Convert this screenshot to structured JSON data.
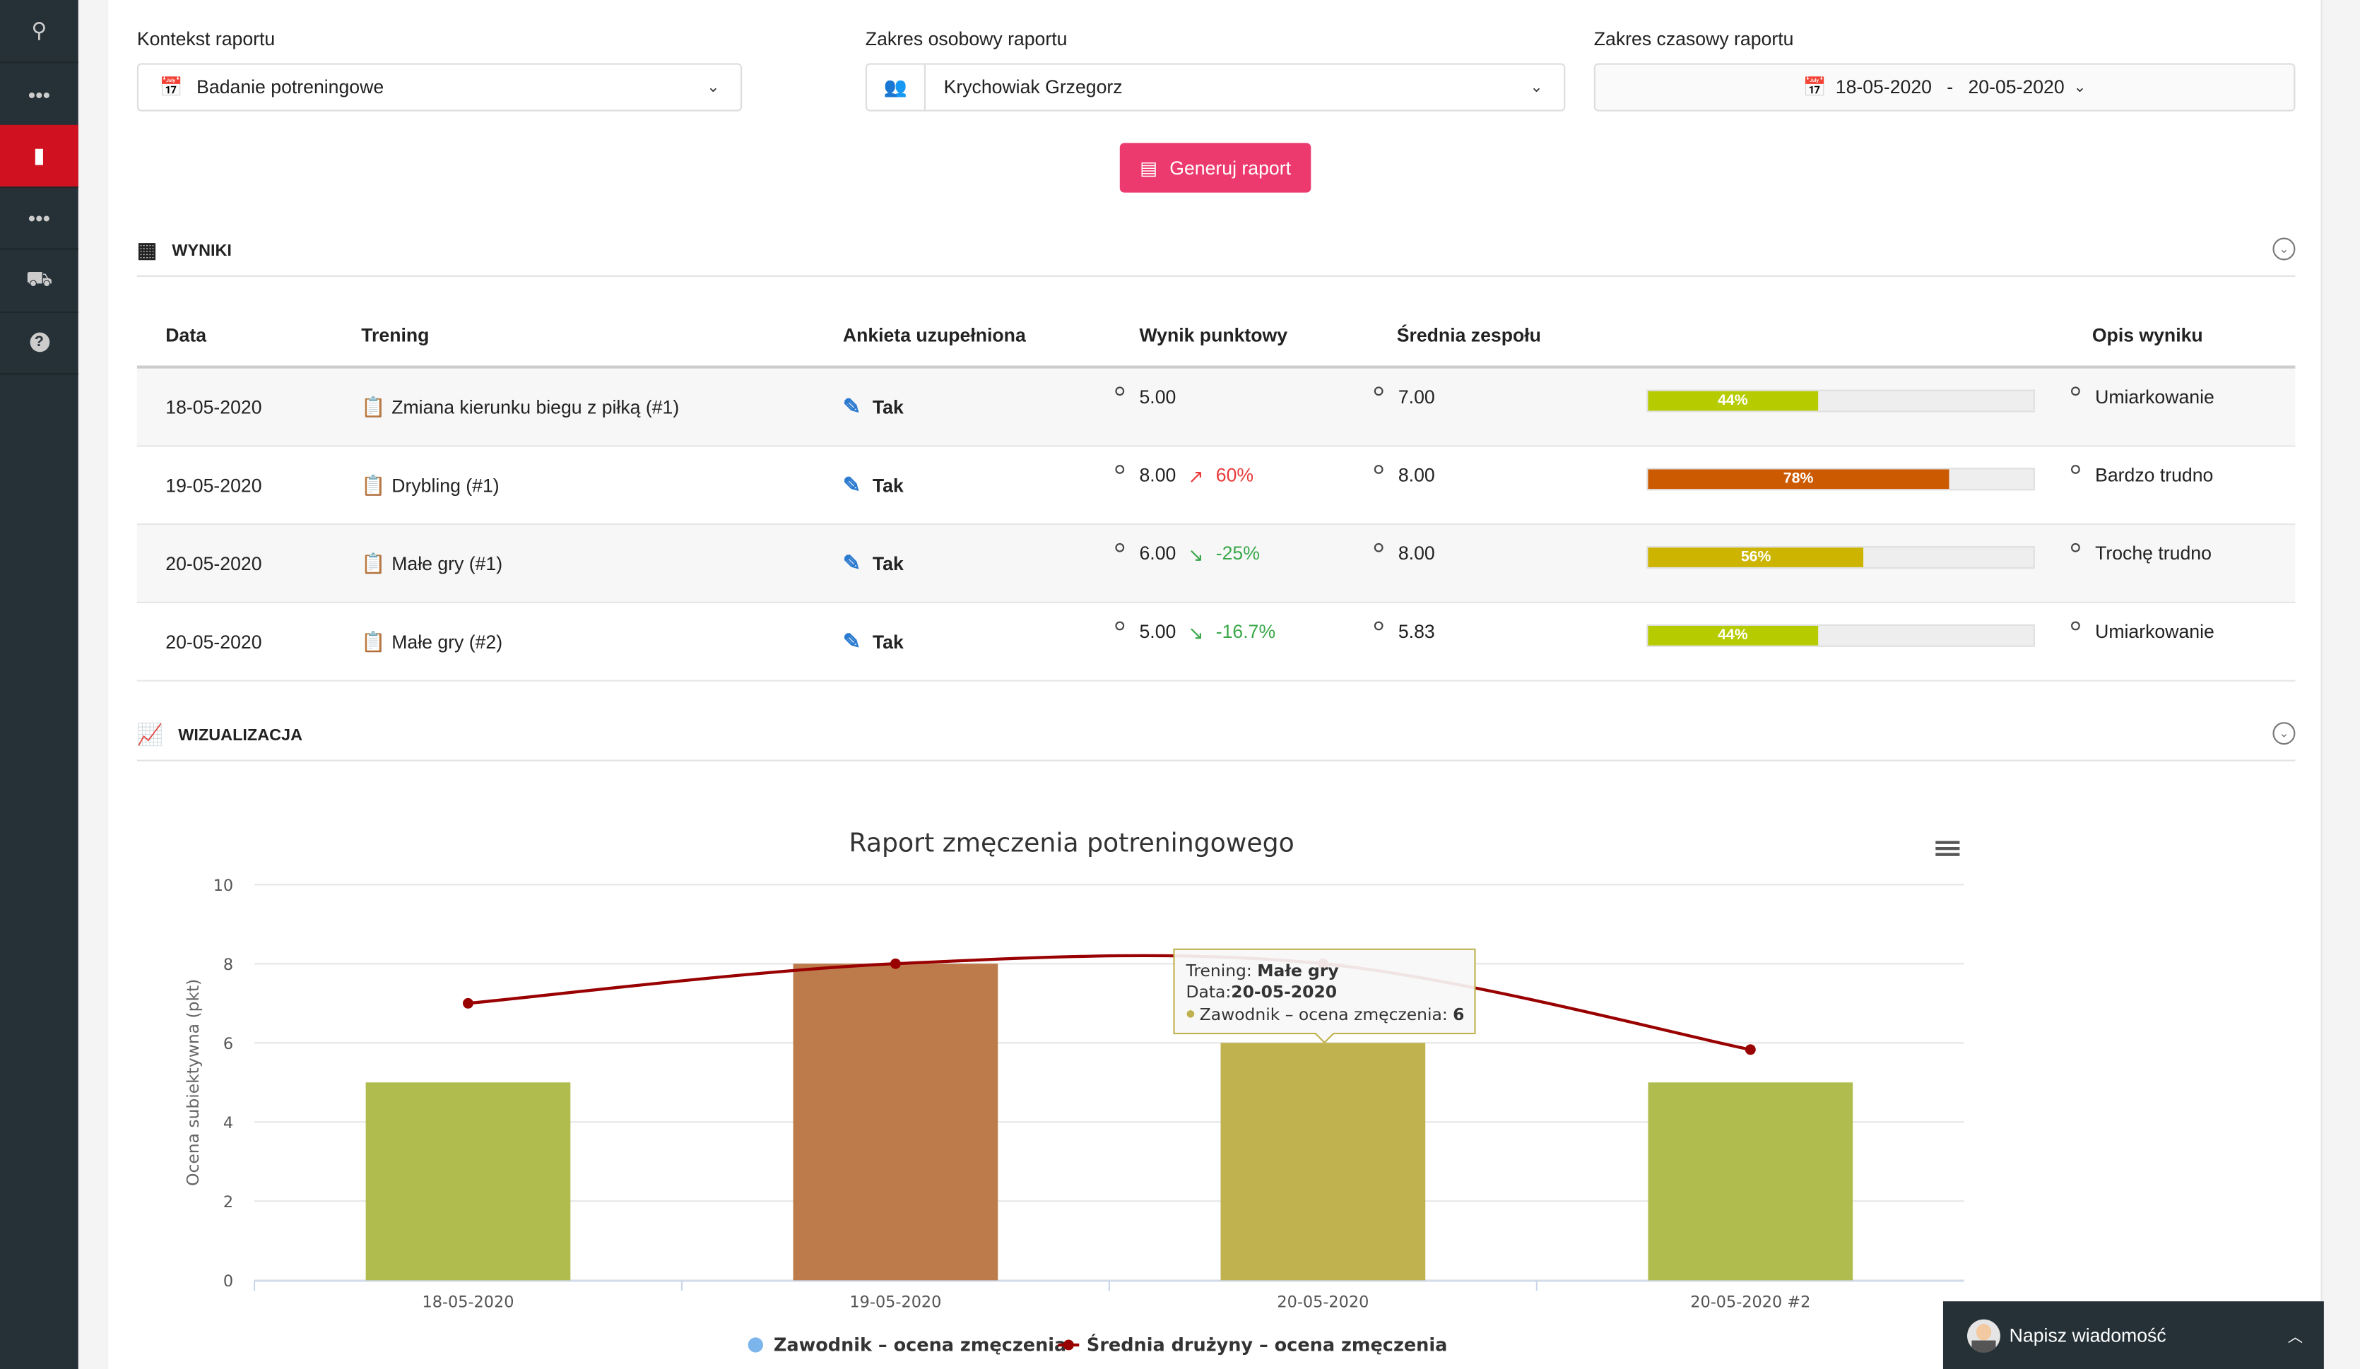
{
  "sidebar": {
    "items": [
      {
        "icon": "team-icon"
      },
      {
        "icon": "more-icon"
      },
      {
        "icon": "book-icon",
        "active": true
      },
      {
        "icon": "more-icon"
      },
      {
        "icon": "armchair-icon"
      },
      {
        "icon": "help-icon"
      }
    ],
    "active_color": "#d0111f"
  },
  "filters": {
    "context": {
      "label": "Kontekst raportu",
      "value": "Badanie potreningowe"
    },
    "person": {
      "label": "Zakres osobowy raportu",
      "value": "Krychowiak Grzegorz"
    },
    "time": {
      "label": "Zakres czasowy raportu",
      "from": "18-05-2020",
      "sep": "-",
      "to": "20-05-2020"
    },
    "generate_label": "Generuj raport",
    "accent": "#ec3a6e"
  },
  "results": {
    "title": "WYNIKI",
    "columns": [
      "Data",
      "Trening",
      "Ankieta uzupełniona",
      "Wynik punktowy",
      "Średnia zespołu",
      "",
      "Opis wyniku"
    ],
    "rows": [
      {
        "date": "18-05-2020",
        "training": "Zmiana kierunku biegu z piłką (#1)",
        "survey": "Tak",
        "score": "5.00",
        "trend": "",
        "trend_dir": "",
        "team_avg": "7.00",
        "pct": 44,
        "pct_label": "44%",
        "color": "#b6cc00",
        "desc": "Umiarkowanie"
      },
      {
        "date": "19-05-2020",
        "training": "Drybling (#1)",
        "survey": "Tak",
        "score": "8.00",
        "trend": "60%",
        "trend_dir": "up",
        "team_avg": "8.00",
        "pct": 78,
        "pct_label": "78%",
        "color": "#cc5a00",
        "desc": "Bardzo trudno"
      },
      {
        "date": "20-05-2020",
        "training": "Małe gry (#1)",
        "survey": "Tak",
        "score": "6.00",
        "trend": "-25%",
        "trend_dir": "down",
        "team_avg": "8.00",
        "pct": 56,
        "pct_label": "56%",
        "color": "#ccb400",
        "desc": "Trochę trudno"
      },
      {
        "date": "20-05-2020",
        "training": "Małe gry (#2)",
        "survey": "Tak",
        "score": "5.00",
        "trend": "-16.7%",
        "trend_dir": "down",
        "team_avg": "5.83",
        "pct": 44,
        "pct_label": "44%",
        "color": "#b6cc00",
        "desc": "Umiarkowanie"
      }
    ]
  },
  "visualization": {
    "title": "WIZUALIZACJA"
  },
  "chart_data": {
    "type": "bar",
    "title": "Raport zmęczenia potreningowego",
    "ylabel": "Ocena subiektywna (pkt)",
    "xlabel": "",
    "ylim": [
      0,
      10
    ],
    "yticks": [
      "0",
      "2",
      "4",
      "6",
      "8",
      "10"
    ],
    "categories": [
      "18-05-2020",
      "19-05-2020",
      "20-05-2020",
      "20-05-2020 #2"
    ],
    "grid": true,
    "legend_position": "bottom",
    "series": [
      {
        "name": "Zawodnik – ocena zmęczenia",
        "type": "bar",
        "values": [
          5,
          8,
          6,
          5
        ],
        "colors": [
          "#b0bd4e",
          "#bd7b4b",
          "#bfb24f",
          "#b0bd4e"
        ],
        "legend_color": "#7cb5ec"
      },
      {
        "name": "Średnia drużyny – ocena zmęczenia",
        "type": "line",
        "values": [
          7,
          8,
          8,
          5.83
        ],
        "color": "#990000"
      }
    ],
    "tooltip": {
      "l1_label": "Trening: ",
      "l1_value": "Małe gry",
      "l2_label": "Data:",
      "l2_value": "20-05-2020",
      "l3_label": "Zawodnik – ocena zmęczenia: ",
      "l3_value": "6",
      "category_index": 2
    }
  },
  "chat": {
    "label": "Napisz wiadomość"
  }
}
